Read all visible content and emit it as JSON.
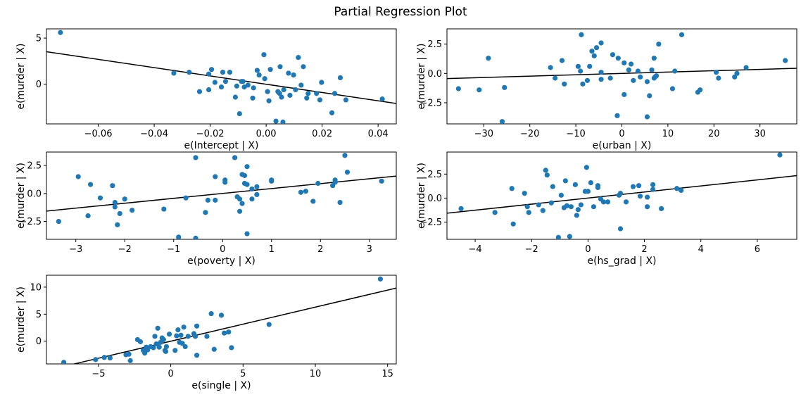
{
  "title": "Partial Regression Plot",
  "colors": {
    "point": "#1f77b4",
    "line": "#000000"
  },
  "chart_data": [
    {
      "type": "scatter",
      "xlabel": "e(Intercept | X)",
      "ylabel": "e(murder | X)",
      "xlim": [
        -0.0785,
        0.0465
      ],
      "ylim": [
        -4.3,
        6.0
      ],
      "xticks": [
        -0.06,
        -0.04,
        -0.02,
        0.0,
        0.02,
        0.04
      ],
      "xticklabels": [
        "−0.06",
        "−0.04",
        "−0.02",
        "0.00",
        "0.02",
        "0.04"
      ],
      "yticks": [
        0,
        5
      ],
      "yticklabels": [
        "0",
        "5"
      ],
      "fit_line": {
        "slope": -44.9,
        "intercept": 0.0
      },
      "points": [
        [
          -0.0735,
          5.6
        ],
        [
          -0.033,
          1.2
        ],
        [
          -0.0275,
          1.3
        ],
        [
          -0.0238,
          -0.8
        ],
        [
          -0.0205,
          -0.6
        ],
        [
          -0.0205,
          1.1
        ],
        [
          -0.0195,
          1.6
        ],
        [
          -0.0183,
          0.2
        ],
        [
          -0.016,
          -0.3
        ],
        [
          -0.0155,
          1.3
        ],
        [
          -0.0145,
          0.3
        ],
        [
          -0.013,
          1.3
        ],
        [
          -0.011,
          -1.4
        ],
        [
          -0.0105,
          -0.2
        ],
        [
          -0.0095,
          -3.2
        ],
        [
          -0.0088,
          0.3
        ],
        [
          -0.0083,
          0.3
        ],
        [
          -0.0078,
          -0.3
        ],
        [
          -0.0065,
          -0.1
        ],
        [
          -0.0048,
          -1.5
        ],
        [
          -0.0045,
          -0.4
        ],
        [
          -0.0032,
          1.5
        ],
        [
          -0.0025,
          1.0
        ],
        [
          -0.0008,
          3.2
        ],
        [
          -0.0005,
          0.6
        ],
        [
          0.0005,
          -0.8
        ],
        [
          0.001,
          -1.8
        ],
        [
          0.0015,
          1.6
        ],
        [
          0.0035,
          -4.0
        ],
        [
          0.0042,
          -0.8
        ],
        [
          0.0048,
          -1.0
        ],
        [
          0.005,
          1.9
        ],
        [
          0.0055,
          -1.4
        ],
        [
          0.006,
          -4.1
        ],
        [
          0.0063,
          -0.6
        ],
        [
          0.008,
          1.2
        ],
        [
          0.0085,
          -1.2
        ],
        [
          0.0098,
          1.0
        ],
        [
          0.0105,
          -0.6
        ],
        [
          0.0115,
          2.9
        ],
        [
          0.0125,
          -0.1
        ],
        [
          0.0133,
          1.9
        ],
        [
          0.0145,
          -1.5
        ],
        [
          0.015,
          -1.0
        ],
        [
          0.018,
          -1.0
        ],
        [
          0.0192,
          -1.7
        ],
        [
          0.0198,
          0.2
        ],
        [
          0.0235,
          -3.1
        ],
        [
          0.0245,
          -1.0
        ],
        [
          0.0265,
          0.7
        ],
        [
          0.0285,
          -1.7
        ],
        [
          0.0415,
          -1.6
        ]
      ]
    },
    {
      "type": "scatter",
      "xlabel": "e(urban | X)",
      "ylabel": "e(murder | X)",
      "xlim": [
        -38.0,
        38.0
      ],
      "ylim": [
        -4.3,
        3.8
      ],
      "xticks": [
        -30,
        -20,
        -10,
        0,
        10,
        20,
        30
      ],
      "xticklabels": [
        "−30",
        "−20",
        "−10",
        "0",
        "10",
        "20",
        "30"
      ],
      "yticks": [
        -2.5,
        0.0,
        2.5
      ],
      "yticklabels": [
        "−2.5",
        "0.0",
        "2.5"
      ],
      "fit_line": {
        "slope": 0.0115,
        "intercept": 0.0
      },
      "points": [
        [
          -35.5,
          -1.3
        ],
        [
          -31,
          -1.4
        ],
        [
          -29,
          1.3
        ],
        [
          -26,
          -4.1
        ],
        [
          -25.5,
          -1.2
        ],
        [
          -15.5,
          0.5
        ],
        [
          -14.5,
          -0.4
        ],
        [
          -13,
          1.1
        ],
        [
          -12.5,
          -0.9
        ],
        [
          -9.5,
          0.6
        ],
        [
          -9,
          0.2
        ],
        [
          -8.8,
          3.3
        ],
        [
          -8.5,
          -0.9
        ],
        [
          -7.5,
          -0.6
        ],
        [
          -7,
          0.6
        ],
        [
          -6.5,
          1.9
        ],
        [
          -6,
          1.5
        ],
        [
          -5.5,
          2.2
        ],
        [
          -4.5,
          2.6
        ],
        [
          -4.5,
          0.1
        ],
        [
          -4.5,
          -0.5
        ],
        [
          -2.5,
          -0.4
        ],
        [
          -2,
          1.6
        ],
        [
          -1,
          -3.6
        ],
        [
          -0.8,
          1.3
        ],
        [
          0.5,
          0.9
        ],
        [
          0.5,
          -1.8
        ],
        [
          1.5,
          0.3
        ],
        [
          2,
          0.8
        ],
        [
          2.5,
          -0.6
        ],
        [
          3.5,
          0.2
        ],
        [
          4,
          -0.3
        ],
        [
          5.5,
          -0.7
        ],
        [
          6,
          -1.9
        ],
        [
          5.5,
          -3.7
        ],
        [
          6.5,
          0.3
        ],
        [
          7,
          1.3
        ],
        [
          7,
          -0.4
        ],
        [
          7.2,
          -0.3
        ],
        [
          7.5,
          -0.2
        ],
        [
          8,
          2.5
        ],
        [
          11,
          -1.3
        ],
        [
          11.5,
          0.2
        ],
        [
          13,
          3.3
        ],
        [
          16.5,
          -1.6
        ],
        [
          17,
          -1.4
        ],
        [
          20.5,
          0.1
        ],
        [
          21,
          -0.4
        ],
        [
          24.5,
          -0.3
        ],
        [
          25,
          0.0
        ],
        [
          27,
          0.5
        ],
        [
          35.5,
          1.1
        ]
      ]
    },
    {
      "type": "scatter",
      "xlabel": "e(poverty | X)",
      "ylabel": "e(murder | X)",
      "xlim": [
        -3.6,
        3.55
      ],
      "ylim": [
        -4.1,
        3.7
      ],
      "xticks": [
        -3,
        -2,
        -1,
        0,
        1,
        2,
        3
      ],
      "xticklabels": [
        "−3",
        "−2",
        "−1",
        "0",
        "1",
        "2",
        "3"
      ],
      "yticks": [
        -2.5,
        0.0,
        2.5
      ],
      "yticklabels": [
        "−2.5",
        "0.0",
        "2.5"
      ],
      "fit_line": {
        "slope": 0.437,
        "intercept": 0.0
      },
      "points": [
        [
          -3.35,
          -2.5
        ],
        [
          -2.95,
          1.5
        ],
        [
          -2.75,
          -2.0
        ],
        [
          -2.7,
          0.8
        ],
        [
          -2.5,
          -0.4
        ],
        [
          -2.25,
          0.7
        ],
        [
          -2.2,
          -0.8
        ],
        [
          -2.2,
          -1.2
        ],
        [
          -2.15,
          -2.8
        ],
        [
          -2.1,
          -1.8
        ],
        [
          -2.0,
          -0.5
        ],
        [
          -1.85,
          -1.5
        ],
        [
          -1.2,
          -1.4
        ],
        [
          -0.9,
          -3.9
        ],
        [
          -0.75,
          -0.4
        ],
        [
          -0.55,
          -4.0
        ],
        [
          -0.55,
          3.2
        ],
        [
          -0.35,
          -1.7
        ],
        [
          -0.3,
          -0.6
        ],
        [
          -0.15,
          1.5
        ],
        [
          -0.15,
          -0.6
        ],
        [
          0.05,
          1.0
        ],
        [
          0.05,
          1.2
        ],
        [
          0.25,
          3.2
        ],
        [
          0.3,
          -0.3
        ],
        [
          0.35,
          -0.5
        ],
        [
          0.35,
          -1.6
        ],
        [
          0.4,
          -0.9
        ],
        [
          0.4,
          1.7
        ],
        [
          0.45,
          1.6
        ],
        [
          0.45,
          0.9
        ],
        [
          0.5,
          0.8
        ],
        [
          0.5,
          2.4
        ],
        [
          0.5,
          -3.6
        ],
        [
          0.6,
          -0.5
        ],
        [
          0.6,
          0.4
        ],
        [
          0.7,
          0.6
        ],
        [
          0.7,
          -0.1
        ],
        [
          1.0,
          1.1
        ],
        [
          1.0,
          1.2
        ],
        [
          1.6,
          0.1
        ],
        [
          1.7,
          0.2
        ],
        [
          1.85,
          -0.7
        ],
        [
          1.95,
          0.9
        ],
        [
          2.25,
          0.7
        ],
        [
          2.3,
          1.2
        ],
        [
          2.3,
          1.0
        ],
        [
          2.4,
          -0.8
        ],
        [
          2.5,
          3.4
        ],
        [
          2.55,
          1.9
        ],
        [
          3.25,
          1.1
        ]
      ]
    },
    {
      "type": "scatter",
      "xlabel": "e(hs_grad | X)",
      "ylabel": "e(murder | X)",
      "xlim": [
        -5.0,
        7.4
      ],
      "ylim": [
        -4.3,
        4.8
      ],
      "xticks": [
        -4,
        -2,
        0,
        2,
        4,
        6
      ],
      "xticklabels": [
        "−4",
        "−2",
        "0",
        "2",
        "4",
        "6"
      ],
      "yticks": [
        -2.5,
        0.0,
        2.5
      ],
      "yticklabels": [
        "−2.5",
        "0.0",
        "2.5"
      ],
      "fit_line": {
        "slope": 0.316,
        "intercept": 0.0
      },
      "points": [
        [
          -4.5,
          -1.1
        ],
        [
          -3.3,
          -1.5
        ],
        [
          -2.7,
          1.0
        ],
        [
          -2.65,
          -2.7
        ],
        [
          -2.25,
          0.5
        ],
        [
          -2.15,
          -0.9
        ],
        [
          -2.1,
          -1.5
        ],
        [
          -1.75,
          -0.7
        ],
        [
          -1.6,
          -1.3
        ],
        [
          -1.5,
          2.9
        ],
        [
          -1.45,
          2.4
        ],
        [
          -1.3,
          -0.5
        ],
        [
          -1.25,
          1.2
        ],
        [
          -1.05,
          -4.1
        ],
        [
          -0.95,
          0.3
        ],
        [
          -0.85,
          -1.0
        ],
        [
          -0.8,
          1.8
        ],
        [
          -0.75,
          -0.8
        ],
        [
          -0.65,
          -4.0
        ],
        [
          -0.6,
          -0.9
        ],
        [
          -0.45,
          1.4
        ],
        [
          -0.4,
          -1.8
        ],
        [
          -0.35,
          -1.2
        ],
        [
          -0.25,
          -0.7
        ],
        [
          -0.1,
          0.7
        ],
        [
          -0.05,
          3.2
        ],
        [
          0.0,
          0.7
        ],
        [
          0.1,
          1.6
        ],
        [
          0.2,
          -0.9
        ],
        [
          0.35,
          1.3
        ],
        [
          0.35,
          1.1
        ],
        [
          0.45,
          -0.1
        ],
        [
          0.55,
          -0.4
        ],
        [
          0.7,
          -0.4
        ],
        [
          1.1,
          0.3
        ],
        [
          1.15,
          0.5
        ],
        [
          1.15,
          -3.2
        ],
        [
          1.35,
          -0.4
        ],
        [
          1.6,
          1.2
        ],
        [
          1.8,
          1.3
        ],
        [
          1.85,
          0.2
        ],
        [
          2.1,
          0.1
        ],
        [
          2.1,
          -0.9
        ],
        [
          2.3,
          0.9
        ],
        [
          2.3,
          1.4
        ],
        [
          2.6,
          -1.1
        ],
        [
          3.15,
          1.0
        ],
        [
          3.3,
          0.8
        ],
        [
          6.8,
          4.5
        ]
      ]
    },
    {
      "type": "scatter",
      "xlabel": "e(single | X)",
      "ylabel": "e(murder | X)",
      "xlim": [
        -8.6,
        15.6
      ],
      "ylim": [
        -4.2,
        12.2
      ],
      "xticks": [
        -5,
        0,
        5,
        10,
        15
      ],
      "xticklabels": [
        "−5",
        "0",
        "5",
        "10",
        "15"
      ],
      "yticks": [
        0,
        5,
        10
      ],
      "yticklabels": [
        "0",
        "5",
        "10"
      ],
      "fit_line": {
        "slope": 0.63,
        "intercept": 0.0
      },
      "points": [
        [
          -7.4,
          -3.9
        ],
        [
          -5.2,
          -3.4
        ],
        [
          -4.6,
          -3.0
        ],
        [
          -4.2,
          -3.1
        ],
        [
          -3.1,
          -2.5
        ],
        [
          -2.9,
          -2.4
        ],
        [
          -2.8,
          -3.6
        ],
        [
          -2.3,
          0.3
        ],
        [
          -2.1,
          -0.1
        ],
        [
          -1.9,
          -1.7
        ],
        [
          -1.8,
          -2.2
        ],
        [
          -1.7,
          -1.1
        ],
        [
          -1.6,
          -1.6
        ],
        [
          -1.4,
          -1.0
        ],
        [
          -1.2,
          -1.2
        ],
        [
          -1.1,
          0.9
        ],
        [
          -1.0,
          -0.5
        ],
        [
          -0.9,
          2.4
        ],
        [
          -0.8,
          -1.1
        ],
        [
          -0.7,
          -0.2
        ],
        [
          -0.6,
          0.6
        ],
        [
          -0.5,
          0.3
        ],
        [
          -0.4,
          -1.7
        ],
        [
          -0.35,
          -1.9
        ],
        [
          -0.3,
          -1.0
        ],
        [
          -0.1,
          1.3
        ],
        [
          0.3,
          -1.7
        ],
        [
          0.4,
          1.0
        ],
        [
          0.5,
          2.1
        ],
        [
          0.6,
          -0.2
        ],
        [
          0.7,
          1.1
        ],
        [
          0.8,
          -0.4
        ],
        [
          0.9,
          2.6
        ],
        [
          1.0,
          -1.0
        ],
        [
          1.2,
          0.9
        ],
        [
          1.6,
          1.4
        ],
        [
          1.7,
          0.9
        ],
        [
          1.8,
          2.8
        ],
        [
          1.8,
          -2.6
        ],
        [
          2.5,
          0.9
        ],
        [
          2.8,
          5.1
        ],
        [
          3.0,
          -1.5
        ],
        [
          3.5,
          4.8
        ],
        [
          3.7,
          1.5
        ],
        [
          4.0,
          1.7
        ],
        [
          4.2,
          -1.2
        ],
        [
          6.8,
          3.1
        ],
        [
          14.5,
          11.5
        ]
      ]
    }
  ]
}
